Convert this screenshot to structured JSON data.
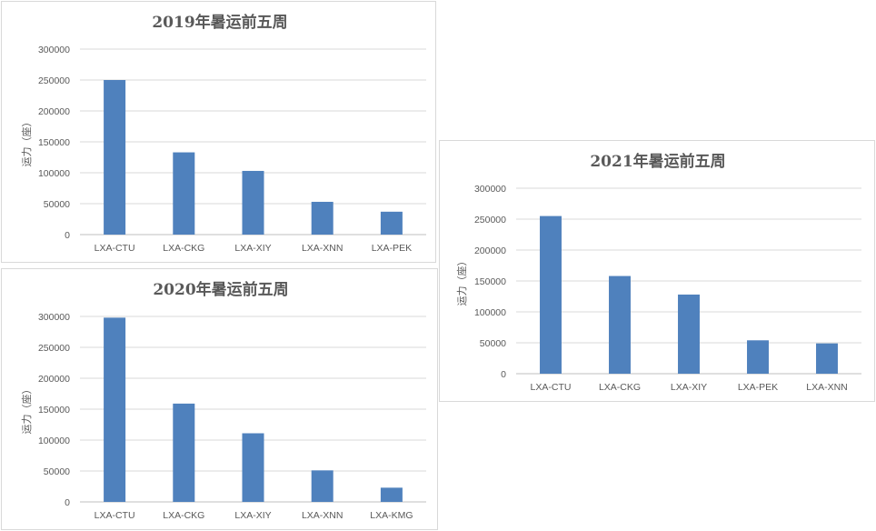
{
  "chart_data": [
    {
      "type": "bar",
      "title": "2019年暑运前五周",
      "ylabel": "运力（座）",
      "xlabel": "",
      "categories": [
        "LXA-CTU",
        "LXA-CKG",
        "LXA-XIY",
        "LXA-XNN",
        "LXA-PEK"
      ],
      "values": [
        250000,
        133000,
        103000,
        53000,
        37000
      ],
      "ylim": [
        0,
        300000
      ],
      "yticks": [
        "0",
        "50000",
        "100000",
        "150000",
        "200000",
        "250000",
        "300000"
      ],
      "grid": true,
      "bar_color": "#4f81bd"
    },
    {
      "type": "bar",
      "title": "2020年暑运前五周",
      "ylabel": "运力（座）",
      "xlabel": "",
      "categories": [
        "LXA-CTU",
        "LXA-CKG",
        "LXA-XIY",
        "LXA-XNN",
        "LXA-KMG"
      ],
      "values": [
        298000,
        159000,
        111000,
        51000,
        23000
      ],
      "ylim": [
        0,
        300000
      ],
      "yticks": [
        "0",
        "50000",
        "100000",
        "150000",
        "200000",
        "250000",
        "300000"
      ],
      "grid": true,
      "bar_color": "#4f81bd"
    },
    {
      "type": "bar",
      "title": "2021年暑运前五周",
      "ylabel": "运力（座）",
      "xlabel": "",
      "categories": [
        "LXA-CTU",
        "LXA-CKG",
        "LXA-XIY",
        "LXA-PEK",
        "LXA-XNN"
      ],
      "values": [
        255000,
        158000,
        128000,
        54000,
        49000
      ],
      "ylim": [
        0,
        300000
      ],
      "yticks": [
        "0",
        "50000",
        "100000",
        "150000",
        "200000",
        "250000",
        "300000"
      ],
      "grid": true,
      "bar_color": "#4f81bd"
    }
  ]
}
